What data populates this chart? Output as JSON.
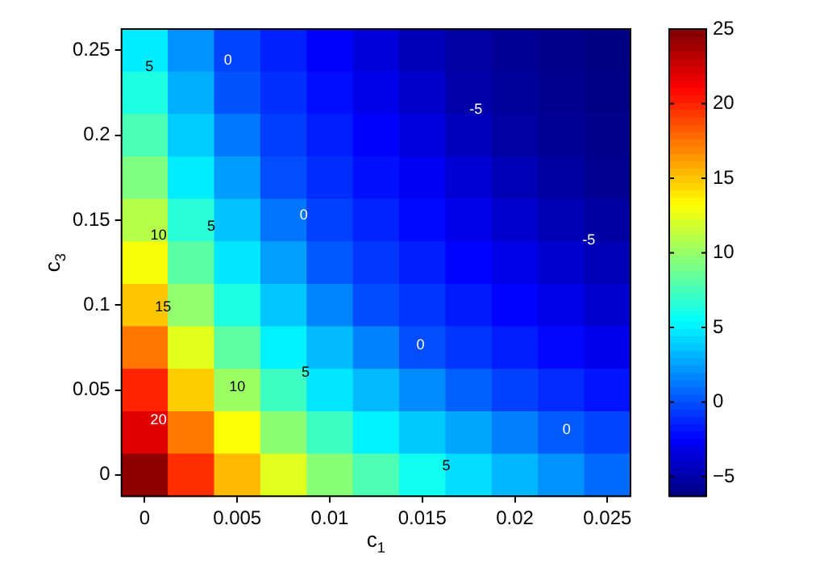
{
  "chart_data": {
    "type": "heatmap",
    "xlabel": "c$_{1}$",
    "ylabel": "c$_{3}$",
    "categories": [
      "0",
      null,
      "0.005",
      null,
      "0.01",
      null,
      "0.015",
      null,
      "0.02",
      null,
      "0.025"
    ],
    "y_categories": [
      "0.25",
      null,
      "0.2",
      null,
      "0.15",
      null,
      "0.1",
      null,
      "0.05",
      null,
      "0"
    ],
    "cells": [
      [
        4.9,
        2.1,
        -0.3,
        -1.4,
        -2.4,
        -3.5,
        -4.6,
        -5.2,
        -5.6,
        -5.9,
        -6.2
      ],
      [
        6.3,
        3.0,
        0.2,
        -0.9,
        -2.0,
        -3.0,
        -4.0,
        -5.0,
        -5.5,
        -5.8,
        -6.1
      ],
      [
        7.7,
        3.9,
        1.3,
        -0.5,
        -1.5,
        -2.4,
        -3.4,
        -4.4,
        -5.2,
        -5.6,
        -5.9
      ],
      [
        9.3,
        4.9,
        2.4,
        0.0,
        -1.0,
        -1.9,
        -2.8,
        -3.7,
        -4.6,
        -5.3,
        -5.7
      ],
      [
        11,
        6.7,
        3.6,
        1.2,
        -0.4,
        -1.3,
        -2.1,
        -3.0,
        -3.9,
        -4.7,
        -5.3
      ],
      [
        13,
        8.2,
        4.7,
        2.5,
        0.3,
        -0.7,
        -1.5,
        -2.3,
        -3.0,
        -3.8,
        -4.6
      ],
      [
        15,
        9.9,
        6.3,
        3.7,
        1.7,
        -0.1,
        -0.8,
        -1.6,
        -2.3,
        -3.1,
        -3.8
      ],
      [
        17.5,
        12.4,
        8.3,
        5.0,
        3.3,
        1.6,
        0.0,
        -0.8,
        -1.5,
        -2.2,
        -2.9
      ],
      [
        20,
        14.8,
        10.2,
        7.3,
        4.7,
        3.3,
        1.9,
        0.6,
        -0.4,
        -1.1,
        -1.8
      ],
      [
        22,
        17.3,
        13.1,
        9.7,
        7.3,
        5.0,
        3.8,
        2.7,
        1.5,
        0.4,
        -0.3
      ],
      [
        24.5,
        19.7,
        15.4,
        12.3,
        9.6,
        7.8,
        5.9,
        4.4,
        3.2,
        2.1,
        0.9
      ]
    ],
    "clim": [
      -6.3,
      25
    ],
    "cticks": [
      -5,
      0,
      5,
      10,
      15,
      20,
      25
    ],
    "annotations": [
      "5",
      "0",
      "-5",
      "-5",
      "10",
      "5",
      "0",
      "15",
      "10",
      "5",
      "0",
      "20",
      "5",
      "0"
    ]
  }
}
